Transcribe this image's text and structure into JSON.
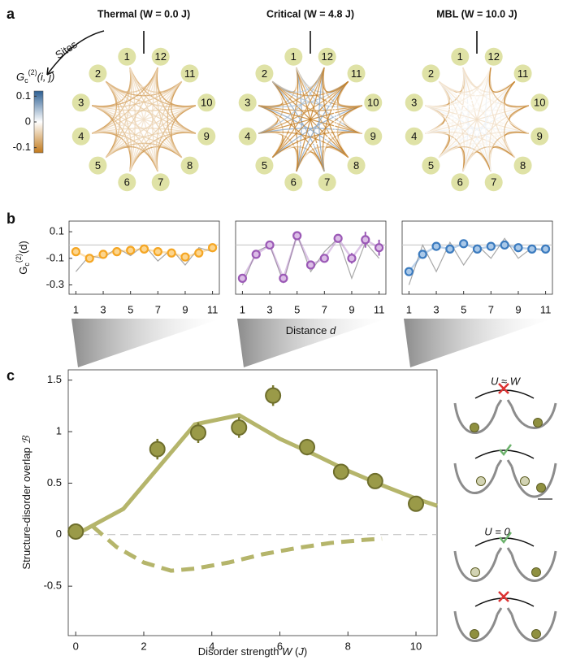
{
  "chart_data": [
    {
      "type": "network",
      "label": "a",
      "arrow_label": "Sites",
      "colorbar": {
        "label_parts": [
          "G",
          "c",
          "(2)",
          "(i, j)"
        ],
        "ticks": [
          0.1,
          0,
          -0.1
        ],
        "clim": [
          -0.12,
          0.12
        ],
        "colors": [
          "#c27a1c",
          "#ffffff",
          "#2c5f93"
        ]
      },
      "graphs": [
        {
          "title": "Thermal (W = 0.0 J)",
          "nodes": [
            "1",
            "2",
            "3",
            "4",
            "5",
            "6",
            "7",
            "8",
            "9",
            "10",
            "11",
            "12"
          ]
        },
        {
          "title": "Critical (W = 4.8 J)",
          "nodes": [
            "1",
            "2",
            "3",
            "4",
            "5",
            "6",
            "7",
            "8",
            "9",
            "10",
            "11",
            "12"
          ]
        },
        {
          "title": "MBL (W = 10.0 J)",
          "nodes": [
            "1",
            "2",
            "3",
            "4",
            "5",
            "6",
            "7",
            "8",
            "9",
            "10",
            "11",
            "12"
          ]
        }
      ],
      "node_color": "#dfe2a6"
    },
    {
      "type": "line",
      "label": "b",
      "ylabel_parts": [
        "G",
        "c",
        "(2)",
        "(d)"
      ],
      "xlim": [
        0.5,
        11.5
      ],
      "ylim": [
        -0.37,
        0.18
      ],
      "xticks": [
        1,
        3,
        5,
        7,
        9,
        11
      ],
      "yticks": [
        0.1,
        -0.1,
        -0.3
      ],
      "hline": 0,
      "series": [
        {
          "color": "#a8a8a8",
          "values": [
            -0.2,
            -0.08,
            -0.1,
            -0.02,
            -0.08,
            0.0,
            -0.12,
            -0.03,
            -0.15,
            -0.02,
            -0.05
          ]
        },
        {
          "color": "#f5a623",
          "fill": "#fcd58e",
          "marker": true,
          "values": [
            -0.05,
            -0.1,
            -0.07,
            -0.05,
            -0.04,
            -0.03,
            -0.05,
            -0.06,
            -0.09,
            -0.06,
            -0.02
          ]
        }
      ]
    },
    {
      "type": "line",
      "xlabel_parts": [
        "Distance ",
        "d"
      ],
      "xlim": [
        0.5,
        11.5
      ],
      "ylim": [
        -0.37,
        0.18
      ],
      "xticks": [
        1,
        3,
        5,
        7,
        9,
        11
      ],
      "hline": 0,
      "series": [
        {
          "color": "#a8a8a8",
          "values": [
            -0.3,
            -0.05,
            0.0,
            -0.28,
            0.08,
            -0.2,
            -0.05,
            0.05,
            -0.25,
            0.02,
            -0.1
          ]
        },
        {
          "color": "#9b59b6",
          "fill": "#dbbde6",
          "marker": true,
          "values": [
            -0.25,
            -0.07,
            0.0,
            -0.25,
            0.07,
            -0.15,
            -0.1,
            0.05,
            -0.1,
            0.04,
            -0.02
          ],
          "errors": [
            0.02,
            0.02,
            0.02,
            0.03,
            0.02,
            0.03,
            0.03,
            0.03,
            0.04,
            0.06,
            0.06
          ]
        }
      ]
    },
    {
      "type": "line",
      "xlim": [
        0.5,
        11.5
      ],
      "ylim": [
        -0.37,
        0.18
      ],
      "xticks": [
        1,
        3,
        5,
        7,
        9,
        11
      ],
      "hline": 0,
      "series": [
        {
          "color": "#a8a8a8",
          "values": [
            -0.3,
            0.0,
            -0.2,
            0.02,
            -0.15,
            0.0,
            -0.1,
            0.05,
            -0.1,
            -0.02,
            -0.05
          ]
        },
        {
          "color": "#3b7bbf",
          "fill": "#a9c8e8",
          "marker": true,
          "values": [
            -0.2,
            -0.07,
            -0.01,
            -0.03,
            0.01,
            -0.03,
            -0.01,
            0.0,
            -0.02,
            -0.03,
            -0.03
          ]
        }
      ]
    },
    {
      "type": "scatter",
      "label": "c",
      "xlabel_parts": [
        "Disorder strength  ",
        "W",
        " (",
        "J",
        ")"
      ],
      "ylabel_parts": [
        "Structure-disorder overlap  ",
        "ℬ"
      ],
      "xlim": [
        -0.22,
        10.62
      ],
      "ylim": [
        -0.98,
        1.6
      ],
      "xticks": [
        0,
        2,
        4,
        6,
        8,
        10
      ],
      "yticks": [
        -0.5,
        0,
        0.5,
        1,
        1.5
      ],
      "hline": 0,
      "points": {
        "color": "#9a9a48",
        "x": [
          0,
          2.4,
          3.6,
          4.8,
          5.8,
          6.8,
          7.8,
          8.8,
          10
        ],
        "values": [
          0.03,
          0.83,
          0.99,
          1.04,
          1.35,
          0.85,
          0.61,
          0.52,
          0.3
        ],
        "errors": [
          0.03,
          0.1,
          0.1,
          0.1,
          0.1,
          0.08,
          0.07,
          0.07,
          0.05
        ]
      },
      "lines": [
        {
          "color": "#b5b56b",
          "style": "solid",
          "x": [
            0,
            1.4,
            3.5,
            4.8,
            6,
            7,
            8,
            9,
            10,
            10.62
          ],
          "values": [
            0,
            0.25,
            1.07,
            1.16,
            0.93,
            0.78,
            0.62,
            0.48,
            0.35,
            0.28
          ]
        },
        {
          "color": "#b5b56b",
          "style": "dashed",
          "x": [
            0.5,
            1.2,
            2,
            2.8,
            3.5,
            4.5,
            5.5,
            6.5,
            7.5,
            8.5,
            9
          ],
          "values": [
            0.08,
            -0.12,
            -0.27,
            -0.35,
            -0.33,
            -0.27,
            -0.19,
            -0.13,
            -0.08,
            -0.05,
            -0.04
          ]
        }
      ],
      "annotations": [
        "U ≈ W",
        "U = 0"
      ]
    }
  ]
}
